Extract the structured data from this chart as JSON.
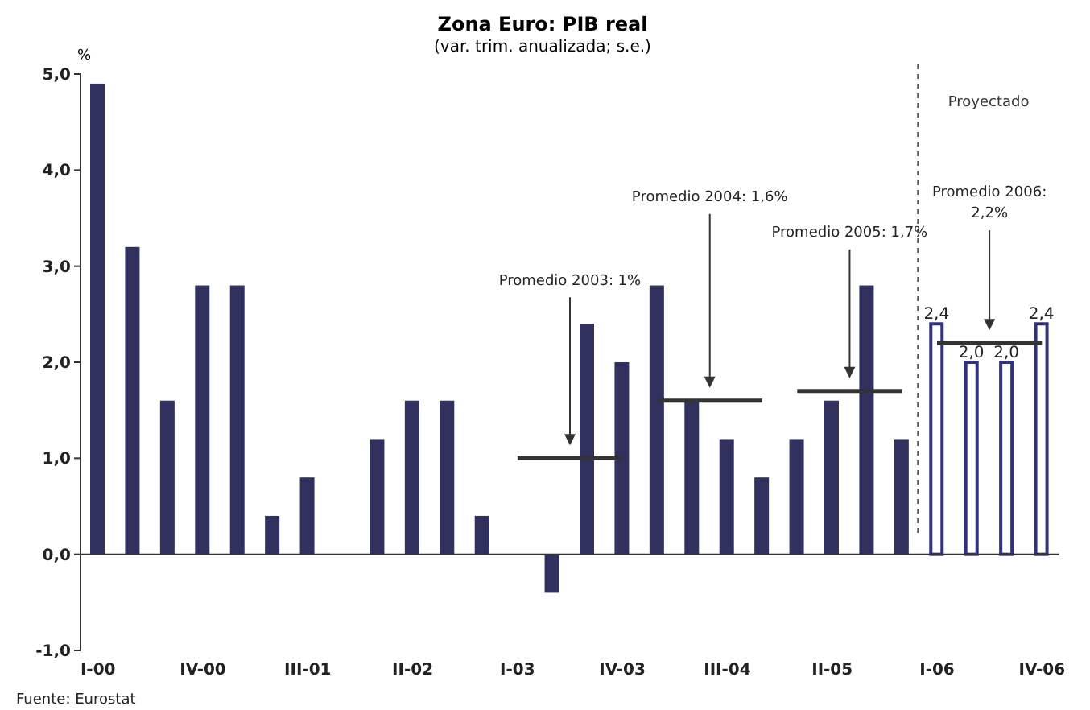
{
  "chart_data": {
    "type": "bar",
    "title": "Zona Euro: PIB real",
    "subtitle": "(var. trim. anualizada; s.e.)",
    "ylabel": "%",
    "categories": [
      "I-00",
      null,
      null,
      "IV-00",
      null,
      null,
      "III-01",
      null,
      null,
      "II-02",
      null,
      null,
      "I-03",
      null,
      null,
      "IV-03",
      null,
      null,
      "III-04",
      null,
      null,
      "II-05",
      null,
      null,
      "I-06",
      null,
      null,
      "IV-06"
    ],
    "stacked": true,
    "series": [
      {
        "color": "#31315f",
        "values": [
          4.9,
          3.2,
          1.6,
          2.8,
          2.8,
          0.4,
          0.8,
          0,
          1.2,
          1.6,
          1.6,
          0.4,
          0,
          -0.4,
          2.4,
          2.0,
          2.8,
          1.6,
          1.2,
          0.8,
          1.2,
          1.6,
          2.8,
          1.2,
          null,
          null,
          null,
          null
        ]
      },
      {
        "color": "#31317a",
        "values": [
          null,
          null,
          null,
          null,
          null,
          null,
          null,
          null,
          null,
          null,
          null,
          null,
          null,
          null,
          null,
          null,
          null,
          null,
          null,
          null,
          null,
          null,
          null,
          null,
          2.4,
          2.0,
          2.0,
          2.4
        ],
        "value_labels": [
          null,
          null,
          null,
          null,
          null,
          null,
          null,
          null,
          null,
          null,
          null,
          null,
          null,
          null,
          null,
          null,
          null,
          null,
          null,
          null,
          null,
          null,
          null,
          null,
          "2,4",
          "2,0",
          "2,0",
          "2,4"
        ]
      },
      {
        "type": "line",
        "color": "#333333",
        "values": [
          null,
          null,
          null,
          null,
          null,
          null,
          null,
          null,
          null,
          null,
          null,
          null,
          1,
          1,
          1,
          1,
          null,
          null,
          null,
          null,
          null,
          null,
          null,
          null,
          null,
          null,
          null,
          null
        ]
      },
      {
        "type": "line",
        "color": "#333333",
        "values": [
          null,
          null,
          null,
          null,
          null,
          null,
          null,
          null,
          null,
          null,
          null,
          null,
          null,
          null,
          null,
          null,
          1.6,
          1.6,
          1.6,
          1.6,
          null,
          null,
          null,
          null,
          null,
          null,
          null,
          null
        ]
      },
      {
        "type": "line",
        "color": "#333333",
        "values": [
          null,
          null,
          null,
          null,
          null,
          null,
          null,
          null,
          null,
          null,
          null,
          null,
          null,
          null,
          null,
          null,
          null,
          null,
          null,
          null,
          1.7,
          1.7,
          1.7,
          1.7,
          null,
          null,
          null,
          null
        ]
      },
      {
        "type": "line",
        "color": "#333333",
        "values": [
          null,
          null,
          null,
          null,
          null,
          null,
          null,
          null,
          null,
          null,
          null,
          null,
          null,
          null,
          null,
          null,
          null,
          null,
          null,
          null,
          null,
          null,
          null,
          null,
          2.2,
          2.2,
          2.2,
          2.2
        ]
      }
    ],
    "ylim": [
      -1,
      5
    ],
    "yticks": [
      {
        "value": -1,
        "label": "-1,0"
      },
      {
        "value": 0,
        "label": "0,0"
      },
      {
        "value": 1,
        "label": "1,0"
      },
      {
        "value": 2,
        "label": "2,0"
      },
      {
        "value": 3,
        "label": "3,0"
      },
      {
        "value": 4,
        "label": "4,0"
      },
      {
        "value": 5,
        "label": "5,0"
      }
    ],
    "annotations": [
      "Promedio 2003: 1%",
      "Promedio 2004: 1,6%",
      "Promedio 2005: 1,7%",
      "Promedio 2006: 2,2%",
      "Proyectado",
      "Fuente: Eurostat"
    ]
  }
}
